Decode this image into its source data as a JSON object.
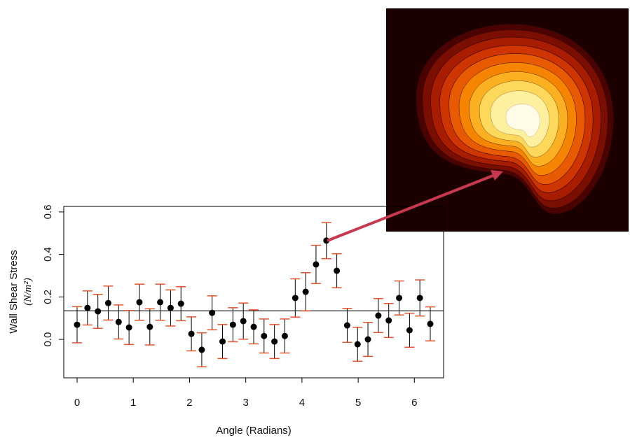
{
  "chart_data": {
    "type": "scatter",
    "x_label": "Angle (Radians)",
    "y_label": "Wall Shear Stress",
    "y_label_unit": "(N/m²)",
    "x": [
      0,
      0.185,
      0.37,
      0.554,
      0.739,
      0.924,
      1.109,
      1.294,
      1.478,
      1.663,
      1.848,
      2.033,
      2.218,
      2.402,
      2.587,
      2.772,
      2.957,
      3.142,
      3.326,
      3.511,
      3.696,
      3.881,
      4.066,
      4.25,
      4.435,
      4.62,
      4.805,
      4.99,
      5.174,
      5.359,
      5.544,
      5.729,
      5.914,
      6.098,
      6.283
    ],
    "values": [
      0.069,
      0.148,
      0.132,
      0.171,
      0.082,
      0.056,
      0.175,
      0.059,
      0.175,
      0.148,
      0.168,
      0.026,
      -0.049,
      0.125,
      -0.01,
      0.069,
      0.086,
      0.059,
      0.016,
      -0.01,
      0.016,
      0.195,
      0.224,
      0.353,
      0.465,
      0.323,
      0.066,
      -0.023,
      0.0,
      0.112,
      0.089,
      0.195,
      0.043,
      0.195,
      0.073
    ],
    "errors": [
      0.085,
      0.08,
      0.08,
      0.08,
      0.08,
      0.08,
      0.085,
      0.085,
      0.085,
      0.085,
      0.08,
      0.08,
      0.08,
      0.08,
      0.08,
      0.08,
      0.085,
      0.08,
      0.08,
      0.08,
      0.08,
      0.09,
      0.09,
      0.09,
      0.085,
      0.08,
      0.08,
      0.08,
      0.08,
      0.08,
      0.08,
      0.08,
      0.08,
      0.085,
      0.08
    ],
    "color": "#000000",
    "error_color": "#e4532c",
    "hline": 0.135,
    "xlim": [
      -0.237,
      6.52
    ],
    "ylim": [
      -0.181,
      0.626
    ],
    "xticks": [
      0,
      1,
      2,
      3,
      4,
      5,
      6
    ],
    "yticks": [
      {
        "value": 0,
        "label": "0.0"
      },
      0.2,
      0.4,
      0.6
    ]
  }
}
